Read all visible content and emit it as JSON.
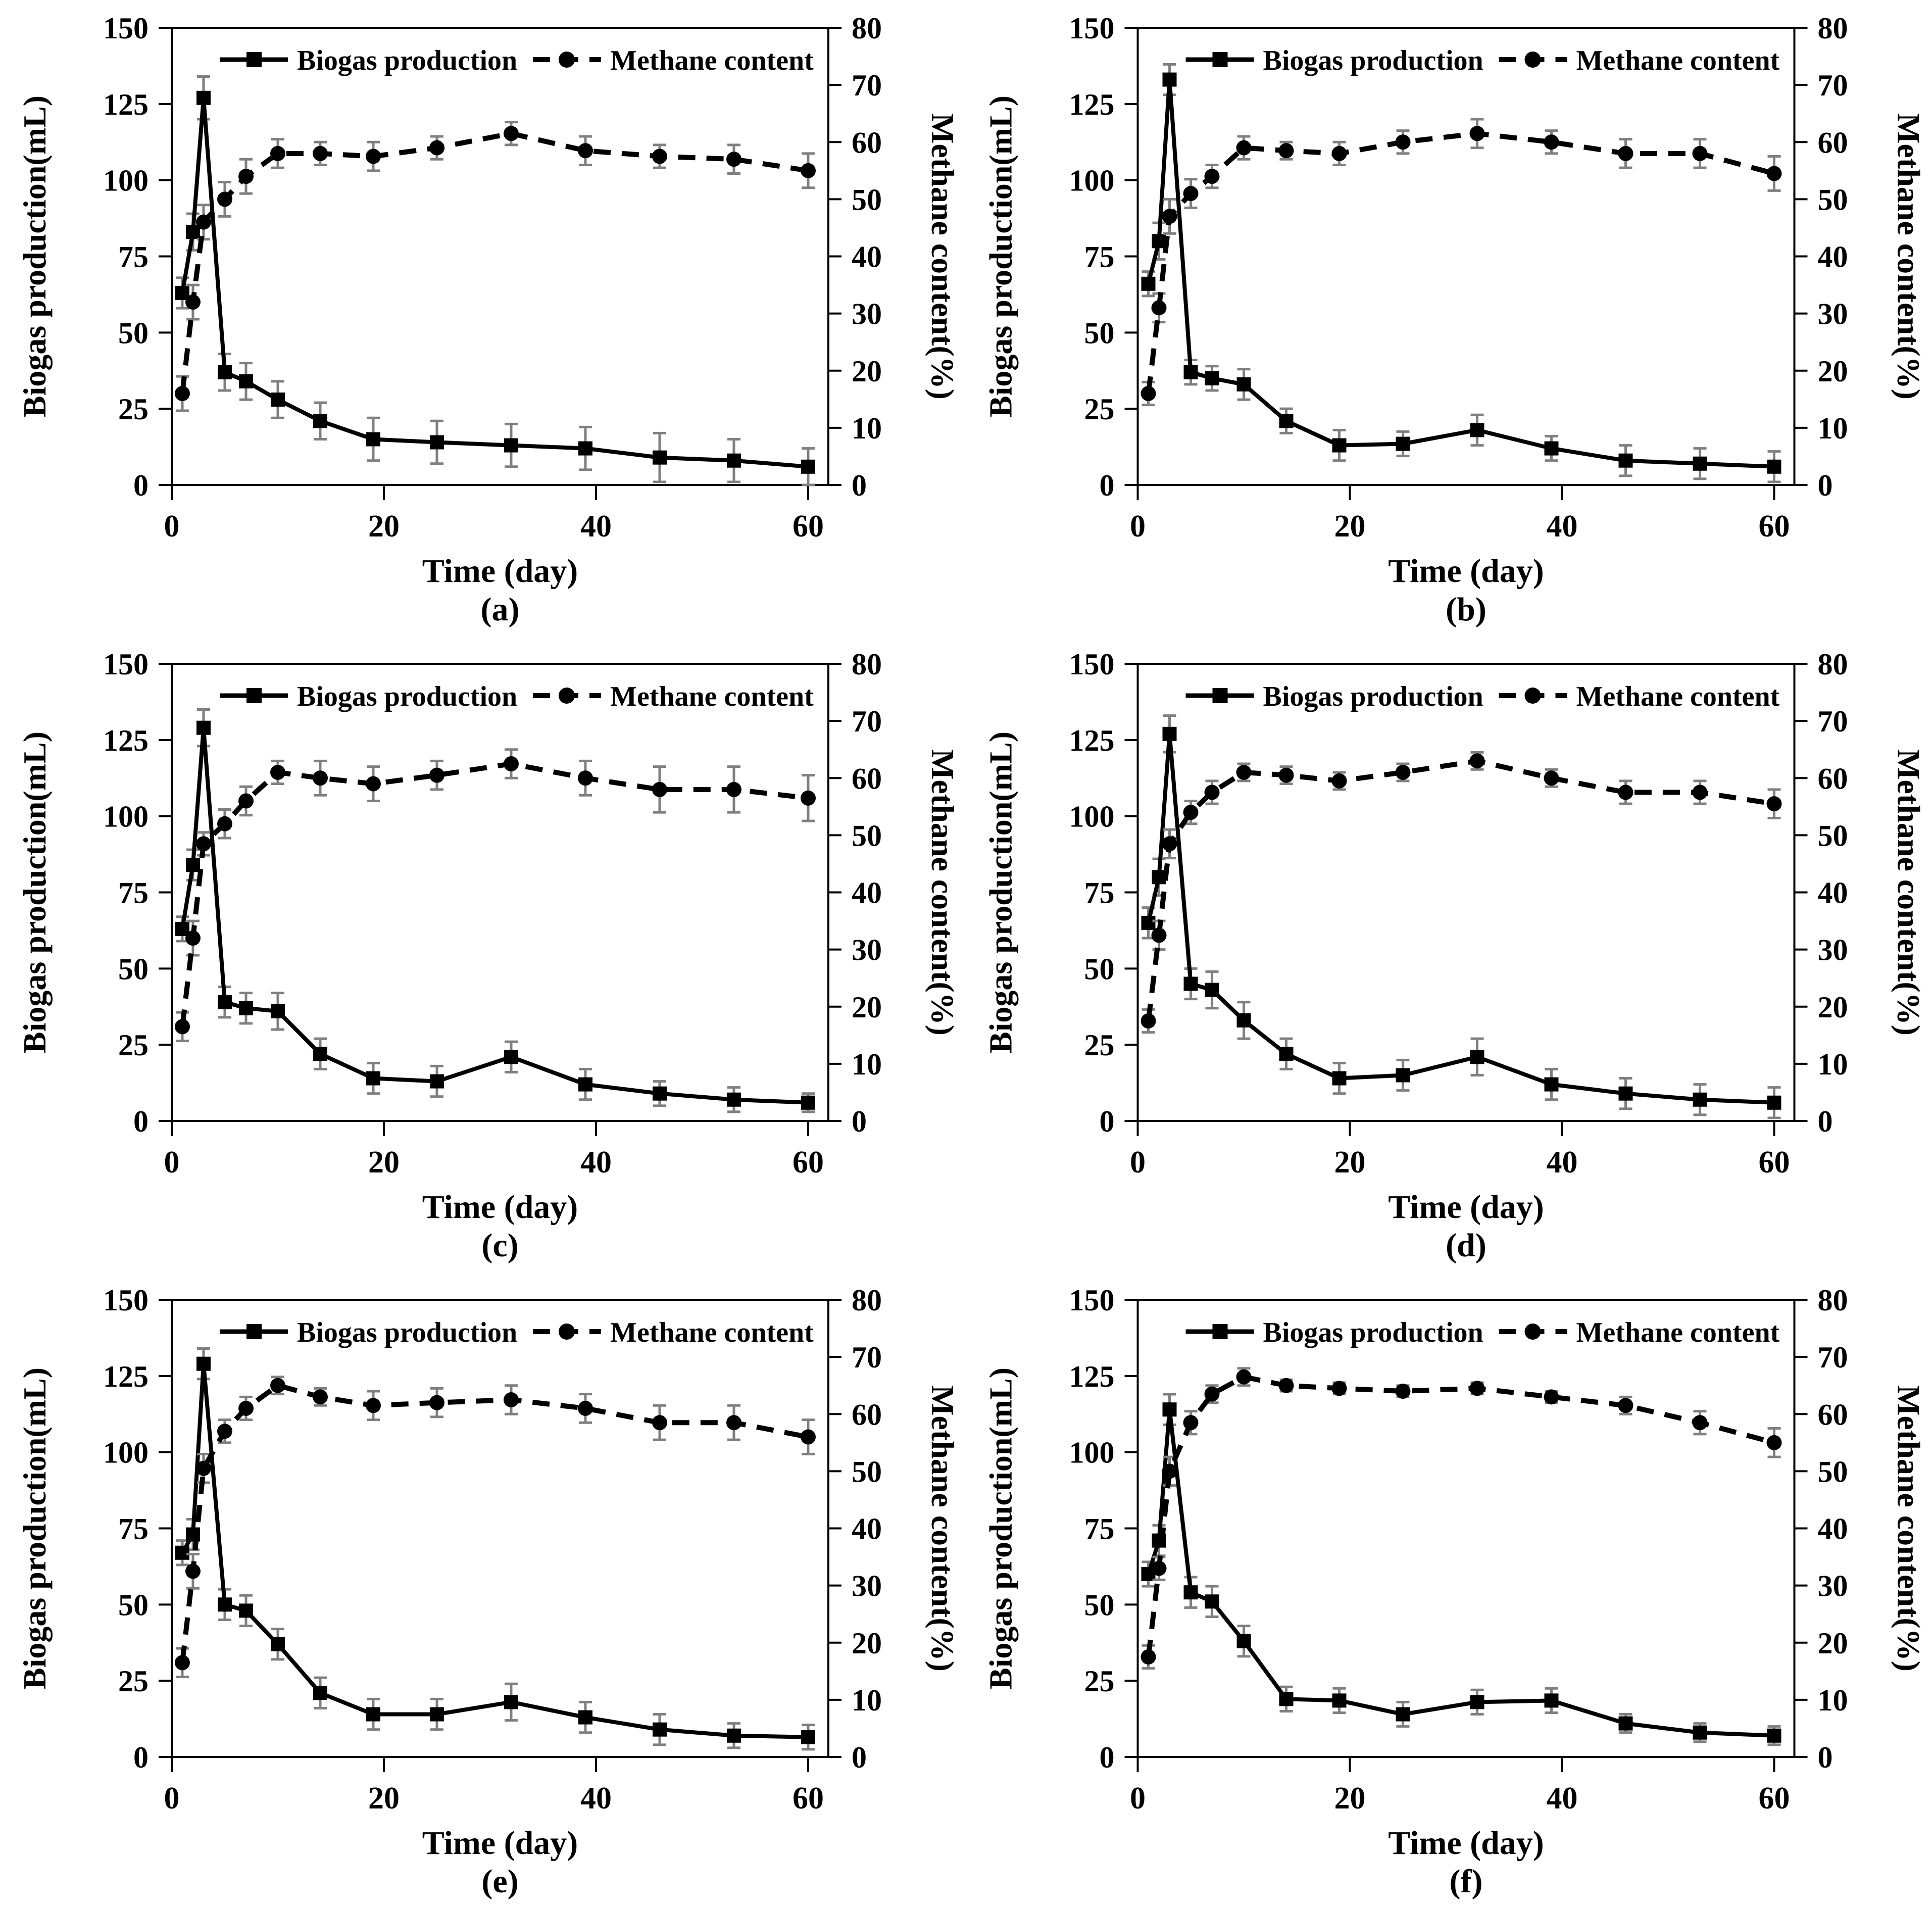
{
  "style": {
    "line_color": "#000000",
    "error_bar_color": "#7f7f7f",
    "background": "#ffffff"
  },
  "chart_data": [
    {
      "panel": "a",
      "caption": "(a)",
      "type": "line",
      "title": "",
      "xlabel": "Time (day)",
      "ylabel_left": "Biogas production(mL)",
      "ylabel_right": "Methane content(%)",
      "x_range": [
        0,
        60
      ],
      "y_left_range": [
        0,
        150
      ],
      "y_right_range": [
        0,
        80
      ],
      "x_ticks": [
        0,
        20,
        40,
        60
      ],
      "y_left_ticks": [
        0,
        25,
        50,
        75,
        100,
        125,
        150
      ],
      "y_right_ticks": [
        0,
        10,
        20,
        30,
        40,
        50,
        60,
        70,
        80
      ],
      "legend": [
        "Biogas production",
        "Methane content"
      ],
      "legend_position": "top-center",
      "grid": false,
      "x": [
        1,
        2,
        3,
        5,
        7,
        10,
        14,
        19,
        25,
        32,
        39,
        46,
        53,
        60
      ],
      "series": [
        {
          "name": "Biogas production",
          "axis": "left",
          "marker": "square",
          "line": "solid",
          "values": [
            63,
            83,
            127,
            37,
            34,
            28,
            21,
            15,
            14,
            13,
            12,
            9,
            8,
            6
          ],
          "errors": [
            5,
            6,
            7,
            6,
            6,
            6,
            6,
            7,
            7,
            7,
            7,
            8,
            7,
            6
          ]
        },
        {
          "name": "Methane content",
          "axis": "right",
          "marker": "circle",
          "line": "dashed",
          "values": [
            16,
            32,
            46,
            50,
            54,
            58,
            58,
            57.5,
            59,
            61.5,
            58.5,
            57.5,
            57,
            55
          ],
          "errors": [
            3,
            3,
            3,
            3,
            3,
            2.5,
            2,
            2.5,
            2,
            2,
            2.5,
            2,
            2.5,
            3
          ]
        }
      ]
    },
    {
      "panel": "b",
      "caption": "(b)",
      "type": "line",
      "title": "",
      "xlabel": "Time (day)",
      "ylabel_left": "Biogas production(mL)",
      "ylabel_right": "Methane content(%)",
      "x_range": [
        0,
        60
      ],
      "y_left_range": [
        0,
        150
      ],
      "y_right_range": [
        0,
        80
      ],
      "x_ticks": [
        0,
        20,
        40,
        60
      ],
      "y_left_ticks": [
        0,
        25,
        50,
        75,
        100,
        125,
        150
      ],
      "y_right_ticks": [
        0,
        10,
        20,
        30,
        40,
        50,
        60,
        70,
        80
      ],
      "legend": [
        "Biogas production",
        "Methane content"
      ],
      "legend_position": "top-center",
      "grid": false,
      "x": [
        1,
        2,
        3,
        5,
        7,
        10,
        14,
        19,
        25,
        32,
        39,
        46,
        53,
        60
      ],
      "series": [
        {
          "name": "Biogas production",
          "axis": "left",
          "marker": "square",
          "line": "solid",
          "values": [
            66,
            80,
            133,
            37,
            35,
            33,
            21,
            13,
            13.5,
            18,
            12,
            8,
            7,
            6
          ],
          "errors": [
            4,
            6,
            5,
            4,
            4,
            5,
            4,
            5,
            4,
            5,
            4,
            5,
            5,
            5
          ]
        },
        {
          "name": "Methane content",
          "axis": "right",
          "marker": "circle",
          "line": "dashed",
          "values": [
            16,
            31,
            47,
            51,
            54,
            59,
            58.5,
            58,
            60,
            61.5,
            60,
            58,
            58,
            54.5
          ],
          "errors": [
            2,
            2.5,
            3,
            2.5,
            2,
            2,
            1.5,
            2,
            2,
            2.5,
            2,
            2.5,
            2.5,
            3
          ]
        }
      ]
    },
    {
      "panel": "c",
      "caption": "(c)",
      "type": "line",
      "title": "",
      "xlabel": "Time (day)",
      "ylabel_left": "Biogas production(mL)",
      "ylabel_right": "Methane content(%)",
      "x_range": [
        0,
        60
      ],
      "y_left_range": [
        0,
        150
      ],
      "y_right_range": [
        0,
        80
      ],
      "x_ticks": [
        0,
        20,
        40,
        60
      ],
      "y_left_ticks": [
        0,
        25,
        50,
        75,
        100,
        125,
        150
      ],
      "y_right_ticks": [
        0,
        10,
        20,
        30,
        40,
        50,
        60,
        70,
        80
      ],
      "legend": [
        "Biogas production",
        "Methane content"
      ],
      "legend_position": "top-center",
      "grid": false,
      "x": [
        1,
        2,
        3,
        5,
        7,
        10,
        14,
        19,
        25,
        32,
        39,
        46,
        53,
        60
      ],
      "series": [
        {
          "name": "Biogas production",
          "axis": "left",
          "marker": "square",
          "line": "solid",
          "values": [
            63,
            84,
            129,
            39,
            37,
            36,
            22,
            14,
            13,
            21,
            12,
            9,
            7,
            6
          ],
          "errors": [
            4,
            5,
            6,
            5,
            5,
            6,
            5,
            5,
            5,
            5,
            5,
            4,
            4,
            3
          ]
        },
        {
          "name": "Methane content",
          "axis": "right",
          "marker": "circle",
          "line": "dashed",
          "values": [
            16.5,
            32,
            48.5,
            52,
            56,
            61,
            60,
            59,
            60.5,
            62.5,
            60,
            58,
            58,
            56.5
          ],
          "errors": [
            2.5,
            3,
            2,
            2.5,
            2.5,
            2,
            3,
            3,
            2.5,
            2.5,
            3,
            4,
            4,
            4
          ]
        }
      ]
    },
    {
      "panel": "d",
      "caption": "(d)",
      "type": "line",
      "title": "",
      "xlabel": "Time (day)",
      "ylabel_left": "Biogas production(mL)",
      "ylabel_right": "Methane content(%)",
      "x_range": [
        0,
        60
      ],
      "y_left_range": [
        0,
        150
      ],
      "y_right_range": [
        0,
        80
      ],
      "x_ticks": [
        0,
        20,
        40,
        60
      ],
      "y_left_ticks": [
        0,
        25,
        50,
        75,
        100,
        125,
        150
      ],
      "y_right_ticks": [
        0,
        10,
        20,
        30,
        40,
        50,
        60,
        70,
        80
      ],
      "legend": [
        "Biogas production",
        "Methane content"
      ],
      "legend_position": "top-center",
      "grid": false,
      "x": [
        1,
        2,
        3,
        5,
        7,
        10,
        14,
        19,
        25,
        32,
        39,
        46,
        53,
        60
      ],
      "series": [
        {
          "name": "Biogas production",
          "axis": "left",
          "marker": "square",
          "line": "solid",
          "values": [
            65,
            80,
            127,
            45,
            43,
            33,
            22,
            14,
            15,
            21,
            12,
            9,
            7,
            6
          ],
          "errors": [
            5,
            6,
            6,
            5,
            6,
            6,
            5,
            5,
            5,
            6,
            5,
            5,
            5,
            5
          ]
        },
        {
          "name": "Methane content",
          "axis": "right",
          "marker": "circle",
          "line": "dashed",
          "values": [
            17.5,
            32.5,
            48.5,
            54,
            57.5,
            61,
            60.5,
            59.5,
            61,
            63,
            60,
            57.5,
            57.5,
            55.5
          ],
          "errors": [
            2,
            2.5,
            2.5,
            2,
            2,
            1.5,
            1.5,
            1.5,
            1.5,
            1.5,
            1.5,
            2,
            2,
            2.5
          ]
        }
      ]
    },
    {
      "panel": "e",
      "caption": "(e)",
      "type": "line",
      "title": "",
      "xlabel": "Time (day)",
      "ylabel_left": "Biogas production(mL)",
      "ylabel_right": "Methane content(%)",
      "x_range": [
        0,
        60
      ],
      "y_left_range": [
        0,
        150
      ],
      "y_right_range": [
        0,
        80
      ],
      "x_ticks": [
        0,
        20,
        40,
        60
      ],
      "y_left_ticks": [
        0,
        25,
        50,
        75,
        100,
        125,
        150
      ],
      "y_right_ticks": [
        0,
        10,
        20,
        30,
        40,
        50,
        60,
        70,
        80
      ],
      "legend": [
        "Biogas production",
        "Methane content"
      ],
      "legend_position": "top-center",
      "grid": false,
      "x": [
        1,
        2,
        3,
        5,
        7,
        10,
        14,
        19,
        25,
        32,
        39,
        46,
        53,
        60
      ],
      "series": [
        {
          "name": "Biogas production",
          "axis": "left",
          "marker": "square",
          "line": "solid",
          "values": [
            67,
            73,
            129,
            50,
            48,
            37,
            21,
            14,
            14,
            18,
            13,
            9,
            7,
            6.5
          ],
          "errors": [
            4,
            5,
            5,
            5,
            5,
            5,
            5,
            5,
            5,
            6,
            5,
            5,
            4,
            4
          ]
        },
        {
          "name": "Methane content",
          "axis": "right",
          "marker": "circle",
          "line": "dashed",
          "values": [
            16.5,
            32.5,
            50.5,
            57,
            61,
            65,
            63,
            61.5,
            62,
            62.5,
            61,
            58.5,
            58.5,
            56
          ],
          "errors": [
            2.5,
            3,
            2.5,
            2,
            2,
            1.5,
            1.5,
            2.5,
            2.5,
            2.5,
            2.5,
            3,
            3,
            3
          ]
        }
      ]
    },
    {
      "panel": "f",
      "caption": "(f)",
      "type": "line",
      "title": "",
      "xlabel": "Time (day)",
      "ylabel_left": "Biogas production(mL)",
      "ylabel_right": "Methane content(%)",
      "x_range": [
        0,
        60
      ],
      "y_left_range": [
        0,
        150
      ],
      "y_right_range": [
        0,
        80
      ],
      "x_ticks": [
        0,
        20,
        40,
        60
      ],
      "y_left_ticks": [
        0,
        25,
        50,
        75,
        100,
        125,
        150
      ],
      "y_right_ticks": [
        0,
        10,
        20,
        30,
        40,
        50,
        60,
        70,
        80
      ],
      "legend": [
        "Biogas production",
        "Methane content"
      ],
      "legend_position": "top-center",
      "grid": false,
      "x": [
        1,
        2,
        3,
        5,
        7,
        10,
        14,
        19,
        25,
        32,
        39,
        46,
        53,
        60
      ],
      "series": [
        {
          "name": "Biogas production",
          "axis": "left",
          "marker": "square",
          "line": "solid",
          "values": [
            60,
            71,
            114,
            54,
            51,
            38,
            19,
            18.5,
            14,
            18,
            18.5,
            11,
            8,
            7
          ],
          "errors": [
            4,
            5,
            5,
            5,
            5,
            5,
            4,
            4,
            4,
            4,
            4,
            3,
            3,
            3
          ]
        },
        {
          "name": "Methane content",
          "axis": "right",
          "marker": "circle",
          "line": "dashed",
          "values": [
            17.5,
            33,
            50,
            58.5,
            63.5,
            66.5,
            65,
            64.5,
            64,
            64.5,
            63,
            61.5,
            58.5,
            55
          ],
          "errors": [
            2,
            2,
            2.5,
            2,
            1.5,
            1.5,
            1,
            1,
            1,
            1,
            1,
            1.5,
            2,
            2.5
          ]
        }
      ]
    }
  ]
}
